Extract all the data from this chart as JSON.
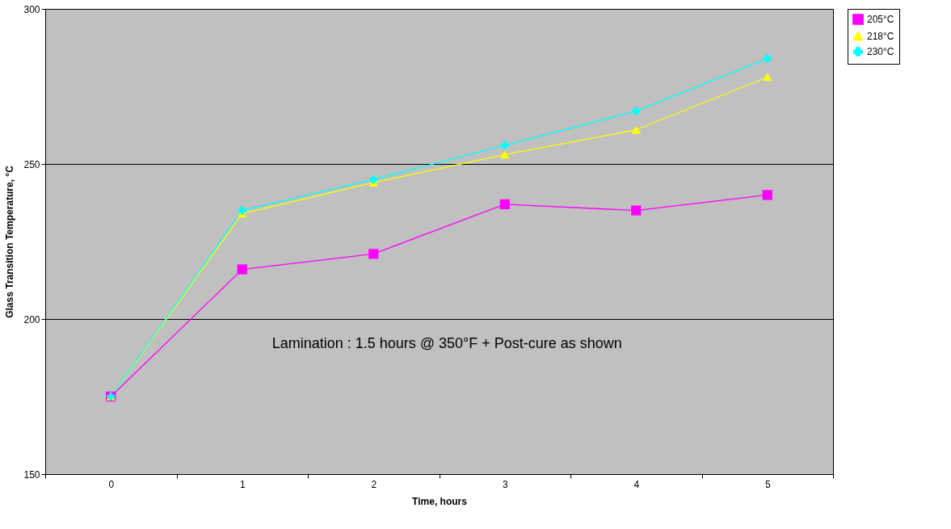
{
  "chart_data": {
    "type": "line",
    "xlabel": "Time, hours",
    "ylabel": "Glass Transition Temperature, °C",
    "categories": [
      "0",
      "1",
      "2",
      "3",
      "4",
      "5"
    ],
    "series": [
      {
        "name": "205°C",
        "color": "#ff00ff",
        "marker": "square",
        "values": [
          175,
          216,
          221,
          237,
          235,
          240
        ]
      },
      {
        "name": "218°C",
        "color": "#ffff00",
        "marker": "triangle",
        "values": [
          175,
          234,
          244,
          253,
          261,
          278
        ]
      },
      {
        "name": "230°C",
        "color": "#00ffff",
        "marker": "cross",
        "values": [
          175,
          235,
          245,
          256,
          267,
          284
        ]
      }
    ],
    "ylim": [
      150,
      300
    ],
    "yticks": [
      150,
      200,
      250,
      300
    ],
    "grid": "y",
    "legend": "right",
    "line_style": "solid",
    "annotations": [
      "Lamination : 1.5 hours @ 350°F + Post-cure as shown"
    ]
  }
}
